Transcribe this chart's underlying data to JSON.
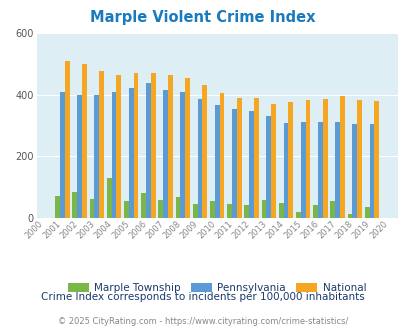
{
  "title": "Marple Violent Crime Index",
  "years": [
    2000,
    2001,
    2002,
    2003,
    2004,
    2005,
    2006,
    2007,
    2008,
    2009,
    2010,
    2011,
    2012,
    2013,
    2014,
    2015,
    2016,
    2017,
    2018,
    2019,
    2020
  ],
  "marple": [
    0,
    70,
    85,
    60,
    130,
    55,
    80,
    57,
    68,
    45,
    55,
    45,
    42,
    58,
    48,
    18,
    42,
    55,
    13,
    35,
    0
  ],
  "pennsylvania": [
    0,
    410,
    400,
    398,
    410,
    422,
    438,
    415,
    410,
    385,
    365,
    353,
    348,
    330,
    308,
    310,
    312,
    312,
    305,
    305,
    0
  ],
  "national": [
    0,
    510,
    498,
    475,
    463,
    470,
    470,
    463,
    455,
    430,
    405,
    388,
    388,
    368,
    375,
    383,
    386,
    397,
    383,
    380,
    0
  ],
  "marple_color": "#7ab648",
  "pennsylvania_color": "#5b9bd5",
  "national_color": "#f5a623",
  "plot_bg": "#deeef5",
  "ylim": [
    0,
    600
  ],
  "yticks": [
    0,
    200,
    400,
    600
  ],
  "legend_labels": [
    "Marple Township",
    "Pennsylvania",
    "National"
  ],
  "subtitle": "Crime Index corresponds to incidents per 100,000 inhabitants",
  "footer": "© 2025 CityRating.com - https://www.cityrating.com/crime-statistics/",
  "title_color": "#1a7abf",
  "subtitle_color": "#1a3a6b",
  "footer_color": "#888888",
  "link_color": "#1a7abf",
  "bar_width": 0.28
}
